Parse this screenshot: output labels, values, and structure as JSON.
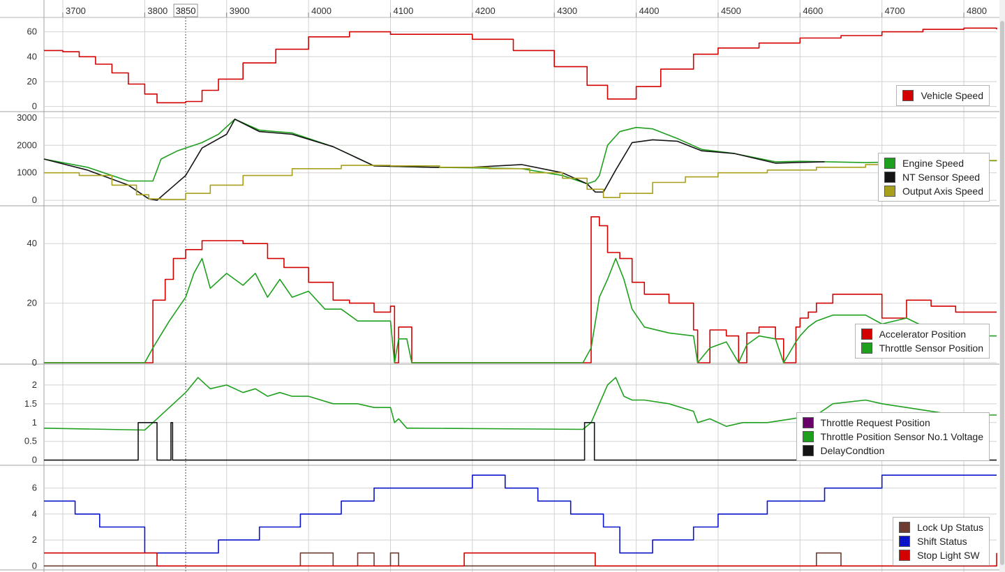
{
  "cursor": {
    "label": "3850",
    "value": 3850
  },
  "time_axis": {
    "ticks": [
      3700,
      3800,
      3900,
      4000,
      4100,
      4200,
      4300,
      4400,
      4500,
      4600,
      4700,
      4800
    ],
    "range": [
      3677,
      4840
    ]
  },
  "chart_data": [
    {
      "type": "line",
      "yticks": [
        "0",
        "20",
        "40",
        "60"
      ],
      "ylim": [
        -3,
        71
      ],
      "legend": [
        "Vehicle Speed"
      ],
      "series": [
        {
          "name": "Vehicle Speed",
          "color": "#d40000",
          "step": true,
          "x": [
            3677,
            3700,
            3720,
            3740,
            3760,
            3780,
            3800,
            3815,
            3850,
            3870,
            3890,
            3920,
            3960,
            4000,
            4050,
            4100,
            4200,
            4250,
            4300,
            4340,
            4365,
            4385,
            4400,
            4430,
            4470,
            4500,
            4550,
            4600,
            4650,
            4700,
            4750,
            4800,
            4840
          ],
          "y": [
            45,
            44,
            40,
            34,
            27,
            18,
            10,
            3,
            4,
            13,
            22,
            35,
            46,
            56,
            60,
            58,
            54,
            45,
            32,
            17,
            6,
            6,
            16,
            30,
            42,
            47,
            51,
            55,
            57,
            60,
            62,
            63,
            62
          ]
        }
      ]
    },
    {
      "type": "line",
      "yticks": [
        "0",
        "1000",
        "2000",
        "3000"
      ],
      "ylim": [
        -150,
        3150
      ],
      "legend": [
        "Engine Speed",
        "NT Sensor Speed",
        "Output Axis Speed"
      ],
      "series": [
        {
          "name": "Engine Speed",
          "color": "#1ea01e",
          "x": [
            3677,
            3730,
            3780,
            3810,
            3820,
            3840,
            3870,
            3890,
            3910,
            3940,
            3980,
            4030,
            4080,
            4150,
            4200,
            4260,
            4310,
            4340,
            4350,
            4355,
            4365,
            4380,
            4400,
            4420,
            4450,
            4480,
            4520,
            4570,
            4600,
            4680,
            4750,
            4800,
            4840
          ],
          "y": [
            1500,
            1200,
            700,
            700,
            1500,
            1800,
            2100,
            2400,
            2950,
            2550,
            2450,
            1950,
            1250,
            1200,
            1180,
            1150,
            900,
            600,
            700,
            900,
            2000,
            2500,
            2650,
            2600,
            2250,
            1850,
            1700,
            1400,
            1420,
            1370,
            1420,
            1450,
            1440
          ]
        },
        {
          "name": "NT Sensor Speed",
          "color": "#141414",
          "x": [
            3677,
            3730,
            3780,
            3805,
            3815,
            3850,
            3870,
            3900,
            3910,
            3940,
            3980,
            4030,
            4080,
            4150,
            4200,
            4260,
            4310,
            4340,
            4350,
            4360,
            4375,
            4395,
            4420,
            4450,
            4480,
            4520,
            4570,
            4630
          ],
          "y": [
            1500,
            1100,
            550,
            50,
            0,
            900,
            1900,
            2400,
            2950,
            2500,
            2400,
            1950,
            1250,
            1200,
            1200,
            1300,
            1000,
            600,
            300,
            300,
            1100,
            2100,
            2200,
            2150,
            1800,
            1700,
            1350,
            1400
          ]
        },
        {
          "name": "Output Axis Speed",
          "color": "#a8a01a",
          "step": true,
          "x": [
            3677,
            3720,
            3760,
            3790,
            3805,
            3820,
            3850,
            3880,
            3920,
            3980,
            4040,
            4100,
            4160,
            4220,
            4270,
            4310,
            4340,
            4360,
            4380,
            4420,
            4460,
            4500,
            4560,
            4620,
            4680,
            4740,
            4800,
            4840
          ],
          "y": [
            1000,
            900,
            550,
            200,
            50,
            30,
            250,
            550,
            900,
            1150,
            1270,
            1250,
            1200,
            1150,
            1000,
            800,
            400,
            100,
            250,
            650,
            850,
            1000,
            1100,
            1200,
            1300,
            1380,
            1450,
            1460
          ]
        }
      ]
    },
    {
      "type": "line",
      "yticks": [
        "0",
        "20",
        "40"
      ],
      "ylim": [
        0,
        52
      ],
      "legend": [
        "Accelerator Position",
        "Throttle Sensor Position"
      ],
      "series": [
        {
          "name": "Accelerator Position",
          "color": "#d40000",
          "step": true,
          "x": [
            3677,
            3800,
            3810,
            3825,
            3835,
            3850,
            3870,
            3920,
            3950,
            3970,
            4000,
            4030,
            4050,
            4080,
            4100,
            4105,
            4110,
            4120,
            4126,
            4335,
            4345,
            4355,
            4365,
            4380,
            4395,
            4410,
            4440,
            4470,
            4475,
            4490,
            4510,
            4525,
            4535,
            4550,
            4570,
            4580,
            4595,
            4600,
            4610,
            4620,
            4640,
            4680,
            4700,
            4730,
            4760,
            4790,
            4840
          ],
          "y": [
            0,
            0,
            21,
            28,
            35,
            38,
            41,
            40,
            35,
            32,
            27,
            21,
            20,
            17,
            19,
            0,
            12,
            12,
            0,
            0,
            49,
            46,
            37,
            35,
            27,
            23,
            20,
            11,
            0,
            11,
            9,
            0,
            10,
            12,
            8,
            0,
            12,
            15,
            17,
            20,
            23,
            23,
            15,
            21,
            19,
            17,
            17
          ]
        },
        {
          "name": "Throttle Sensor Position",
          "color": "#1ea01e",
          "x": [
            3677,
            3800,
            3810,
            3830,
            3850,
            3860,
            3870,
            3880,
            3900,
            3920,
            3935,
            3950,
            3965,
            3980,
            4000,
            4020,
            4040,
            4060,
            4080,
            4100,
            4105,
            4110,
            4120,
            4126,
            4335,
            4345,
            4355,
            4365,
            4375,
            4385,
            4395,
            4410,
            4440,
            4470,
            4475,
            4490,
            4510,
            4525,
            4535,
            4550,
            4570,
            4580,
            4595,
            4600,
            4610,
            4620,
            4640,
            4680,
            4700,
            4730,
            4760,
            4790,
            4840
          ],
          "y": [
            0,
            0,
            5,
            14,
            22,
            30,
            35,
            25,
            30,
            26,
            30,
            22,
            28,
            22,
            24,
            18,
            18,
            14,
            14,
            14,
            0,
            8,
            8,
            0,
            0,
            5,
            22,
            28,
            35,
            28,
            18,
            12,
            10,
            9,
            0,
            5,
            7,
            0,
            6,
            9,
            8,
            0,
            7,
            9,
            12,
            14,
            16,
            16,
            13,
            15,
            11,
            9,
            9
          ]
        }
      ]
    },
    {
      "type": "line",
      "yticks": [
        "0",
        "0.5",
        "1",
        "1.5",
        "2"
      ],
      "ylim": [
        -0.1,
        2.5
      ],
      "legend": [
        "Throttle Request Position",
        "Throttle Position Sensor No.1 Voltage",
        "DelayCondtion"
      ],
      "series": [
        {
          "name": "Throttle Request Position",
          "color": "#6a006a",
          "x": [],
          "y": []
        },
        {
          "name": "Throttle Position Sensor No.1 Voltage",
          "color": "#1ea01e",
          "x": [
            3677,
            3800,
            3810,
            3830,
            3850,
            3865,
            3880,
            3900,
            3920,
            3935,
            3950,
            3965,
            3980,
            4000,
            4030,
            4060,
            4080,
            4100,
            4105,
            4110,
            4120,
            4126,
            4335,
            4345,
            4355,
            4365,
            4375,
            4385,
            4395,
            4410,
            4440,
            4470,
            4475,
            4490,
            4510,
            4530,
            4560,
            4590,
            4620,
            4640,
            4680,
            4700,
            4730,
            4760,
            4790,
            4840
          ],
          "y": [
            0.85,
            0.8,
            1.0,
            1.4,
            1.8,
            2.2,
            1.9,
            2.0,
            1.8,
            1.9,
            1.7,
            1.8,
            1.7,
            1.7,
            1.5,
            1.5,
            1.4,
            1.4,
            1.0,
            1.1,
            0.85,
            0.85,
            0.82,
            1.0,
            1.5,
            2.0,
            2.2,
            1.7,
            1.6,
            1.6,
            1.5,
            1.3,
            1.0,
            1.1,
            0.9,
            1.0,
            1.0,
            1.1,
            1.2,
            1.5,
            1.6,
            1.5,
            1.4,
            1.3,
            1.2,
            1.2
          ]
        },
        {
          "name": "DelayCondtion",
          "color": "#141414",
          "step": true,
          "x": [
            3677,
            3790,
            3792,
            3815,
            3817,
            3832,
            3834,
            4335,
            4337,
            4347,
            4349,
            4840
          ],
          "y": [
            0,
            0,
            1,
            0,
            0,
            1,
            0,
            0,
            1,
            1,
            0,
            0
          ]
        }
      ]
    },
    {
      "type": "line",
      "yticks": [
        "0",
        "2",
        "4",
        "6"
      ],
      "ylim": [
        -0.2,
        7.6
      ],
      "legend": [
        "Lock Up Status",
        "Shift Status",
        "Stop Light SW"
      ],
      "series": [
        {
          "name": "Lock Up Status",
          "color": "#6e3c32",
          "step": true,
          "x": [
            3677,
            3990,
            4010,
            4030,
            4060,
            4080,
            4100,
            4110,
            4620,
            4650,
            4840
          ],
          "y": [
            0,
            1,
            1,
            0,
            1,
            0,
            1,
            0,
            1,
            0,
            0
          ]
        },
        {
          "name": "Shift Status",
          "color": "#0a14c8",
          "step": true,
          "x": [
            3677,
            3715,
            3745,
            3800,
            3850,
            3890,
            3940,
            3990,
            4040,
            4080,
            4200,
            4240,
            4280,
            4320,
            4360,
            4380,
            4420,
            4470,
            4500,
            4560,
            4630,
            4700,
            4840
          ],
          "y": [
            5,
            4,
            3,
            1,
            1,
            2,
            3,
            4,
            5,
            6,
            7,
            6,
            5,
            4,
            3,
            1,
            2,
            3,
            4,
            5,
            6,
            7,
            7
          ]
        },
        {
          "name": "Stop Light SW",
          "color": "#d40000",
          "step": true,
          "x": [
            3677,
            3815,
            4190,
            4350,
            4700,
            4840
          ],
          "y": [
            1,
            0,
            1,
            0,
            0,
            1
          ]
        }
      ]
    }
  ]
}
